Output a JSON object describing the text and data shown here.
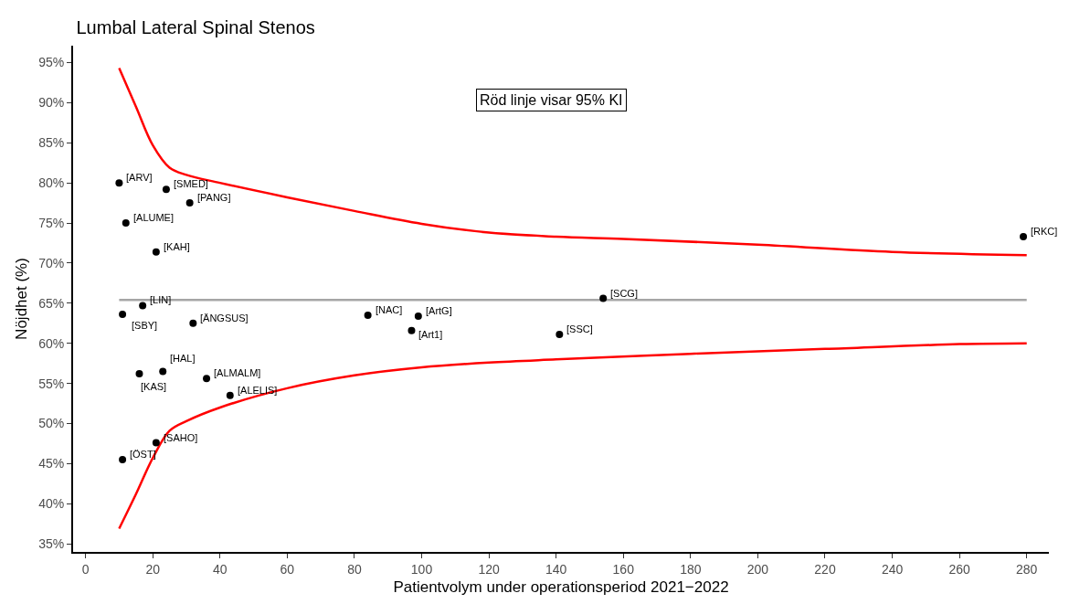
{
  "chart_data": {
    "type": "scatter",
    "title": "Lumbal Lateral Spinal Stenos",
    "xlabel": "Patientvolym under operationsperiod 2021−2022",
    "ylabel": "Nöjdhet (%)",
    "xlim": [
      -3.7,
      286.6
    ],
    "ylim": [
      34,
      97.1
    ],
    "xticks": [
      0,
      20,
      40,
      60,
      80,
      100,
      120,
      140,
      160,
      180,
      200,
      220,
      240,
      260,
      280
    ],
    "yticks": [
      {
        "value": 35,
        "label": "35%"
      },
      {
        "value": 40,
        "label": "40%"
      },
      {
        "value": 45,
        "label": "45%"
      },
      {
        "value": 50,
        "label": "50%"
      },
      {
        "value": 55,
        "label": "55%"
      },
      {
        "value": 60,
        "label": "60%"
      },
      {
        "value": 65,
        "label": "65%"
      },
      {
        "value": 70,
        "label": "70%"
      },
      {
        "value": 75,
        "label": "75%"
      },
      {
        "value": 80,
        "label": "80%"
      },
      {
        "value": 85,
        "label": "85%"
      },
      {
        "value": 90,
        "label": "90%"
      },
      {
        "value": 95,
        "label": "95%"
      }
    ],
    "marker": "circle",
    "series": [
      {
        "type": "line",
        "color": "#ff0000",
        "marker": "none",
        "x": [
          10,
          15,
          20,
          25,
          30,
          40,
          60,
          80,
          100,
          120,
          140,
          160,
          200,
          240,
          280
        ],
        "values": [
          94.3,
          89.5,
          84.7,
          81.9,
          81.0,
          80.0,
          78.2,
          76.5,
          74.9,
          73.8,
          73.3,
          73.0,
          72.3,
          71.4,
          71.0
        ]
      },
      {
        "type": "line",
        "color": "#ff0000",
        "marker": "none",
        "x": [
          10,
          15,
          20,
          25,
          30,
          40,
          60,
          80,
          100,
          120,
          140,
          180,
          220,
          260,
          280
        ],
        "values": [
          36.9,
          41.2,
          45.7,
          49.1,
          50.3,
          52.0,
          54.4,
          56.0,
          57.0,
          57.6,
          58.0,
          58.7,
          59.3,
          59.9,
          60.0
        ]
      },
      {
        "type": "line",
        "color": "#a6a6a6",
        "marker": "none",
        "x": [
          10,
          280
        ],
        "values": [
          65.4,
          65.4
        ]
      },
      {
        "color": "#000000",
        "x": [
          10,
          24,
          31,
          12,
          21,
          17,
          11,
          32,
          23,
          16,
          36,
          43,
          21,
          11,
          84,
          99,
          97,
          141,
          154,
          279
        ],
        "values": [
          80.0,
          79.2,
          77.5,
          75.0,
          71.4,
          64.7,
          63.6,
          62.5,
          56.5,
          56.2,
          55.6,
          53.5,
          47.6,
          45.5,
          63.5,
          63.4,
          61.6,
          61.1,
          65.6,
          73.3
        ]
      }
    ],
    "annotations": [
      "Röd linje visar 95% KI",
      {
        "text": "[ARV]",
        "x": 10,
        "y": 80.0
      },
      {
        "text": "[SMED]",
        "x": 24,
        "y": 79.2
      },
      {
        "text": "[PANG]",
        "x": 31,
        "y": 77.5
      },
      {
        "text": "[ALUME]",
        "x": 12,
        "y": 75.0
      },
      {
        "text": "[KAH]",
        "x": 21,
        "y": 71.4
      },
      {
        "text": "[LIN]",
        "x": 17,
        "y": 64.7
      },
      {
        "text": "[SBY]",
        "x": 11,
        "y": 63.6
      },
      {
        "text": "[ÄNGSUS]",
        "x": 32,
        "y": 62.5
      },
      {
        "text": "[HAL]",
        "x": 23,
        "y": 56.5
      },
      {
        "text": "[KAS]",
        "x": 16,
        "y": 56.2
      },
      {
        "text": "[ALMALM]",
        "x": 36,
        "y": 55.6
      },
      {
        "text": "[ALELIS]",
        "x": 43,
        "y": 53.5
      },
      {
        "text": "[SAHO]",
        "x": 21,
        "y": 47.6
      },
      {
        "text": "[ÖST]",
        "x": 11,
        "y": 45.5
      },
      {
        "text": "[NAC]",
        "x": 84,
        "y": 63.5
      },
      {
        "text": "[ArtG]",
        "x": 99,
        "y": 63.4
      },
      {
        "text": "[Art1]",
        "x": 97,
        "y": 61.6
      },
      {
        "text": "[SSC]",
        "x": 141,
        "y": 61.1
      },
      {
        "text": "[SCG]",
        "x": 154,
        "y": 65.6
      },
      {
        "text": "[RKC]",
        "x": 279,
        "y": 73.3
      }
    ]
  }
}
